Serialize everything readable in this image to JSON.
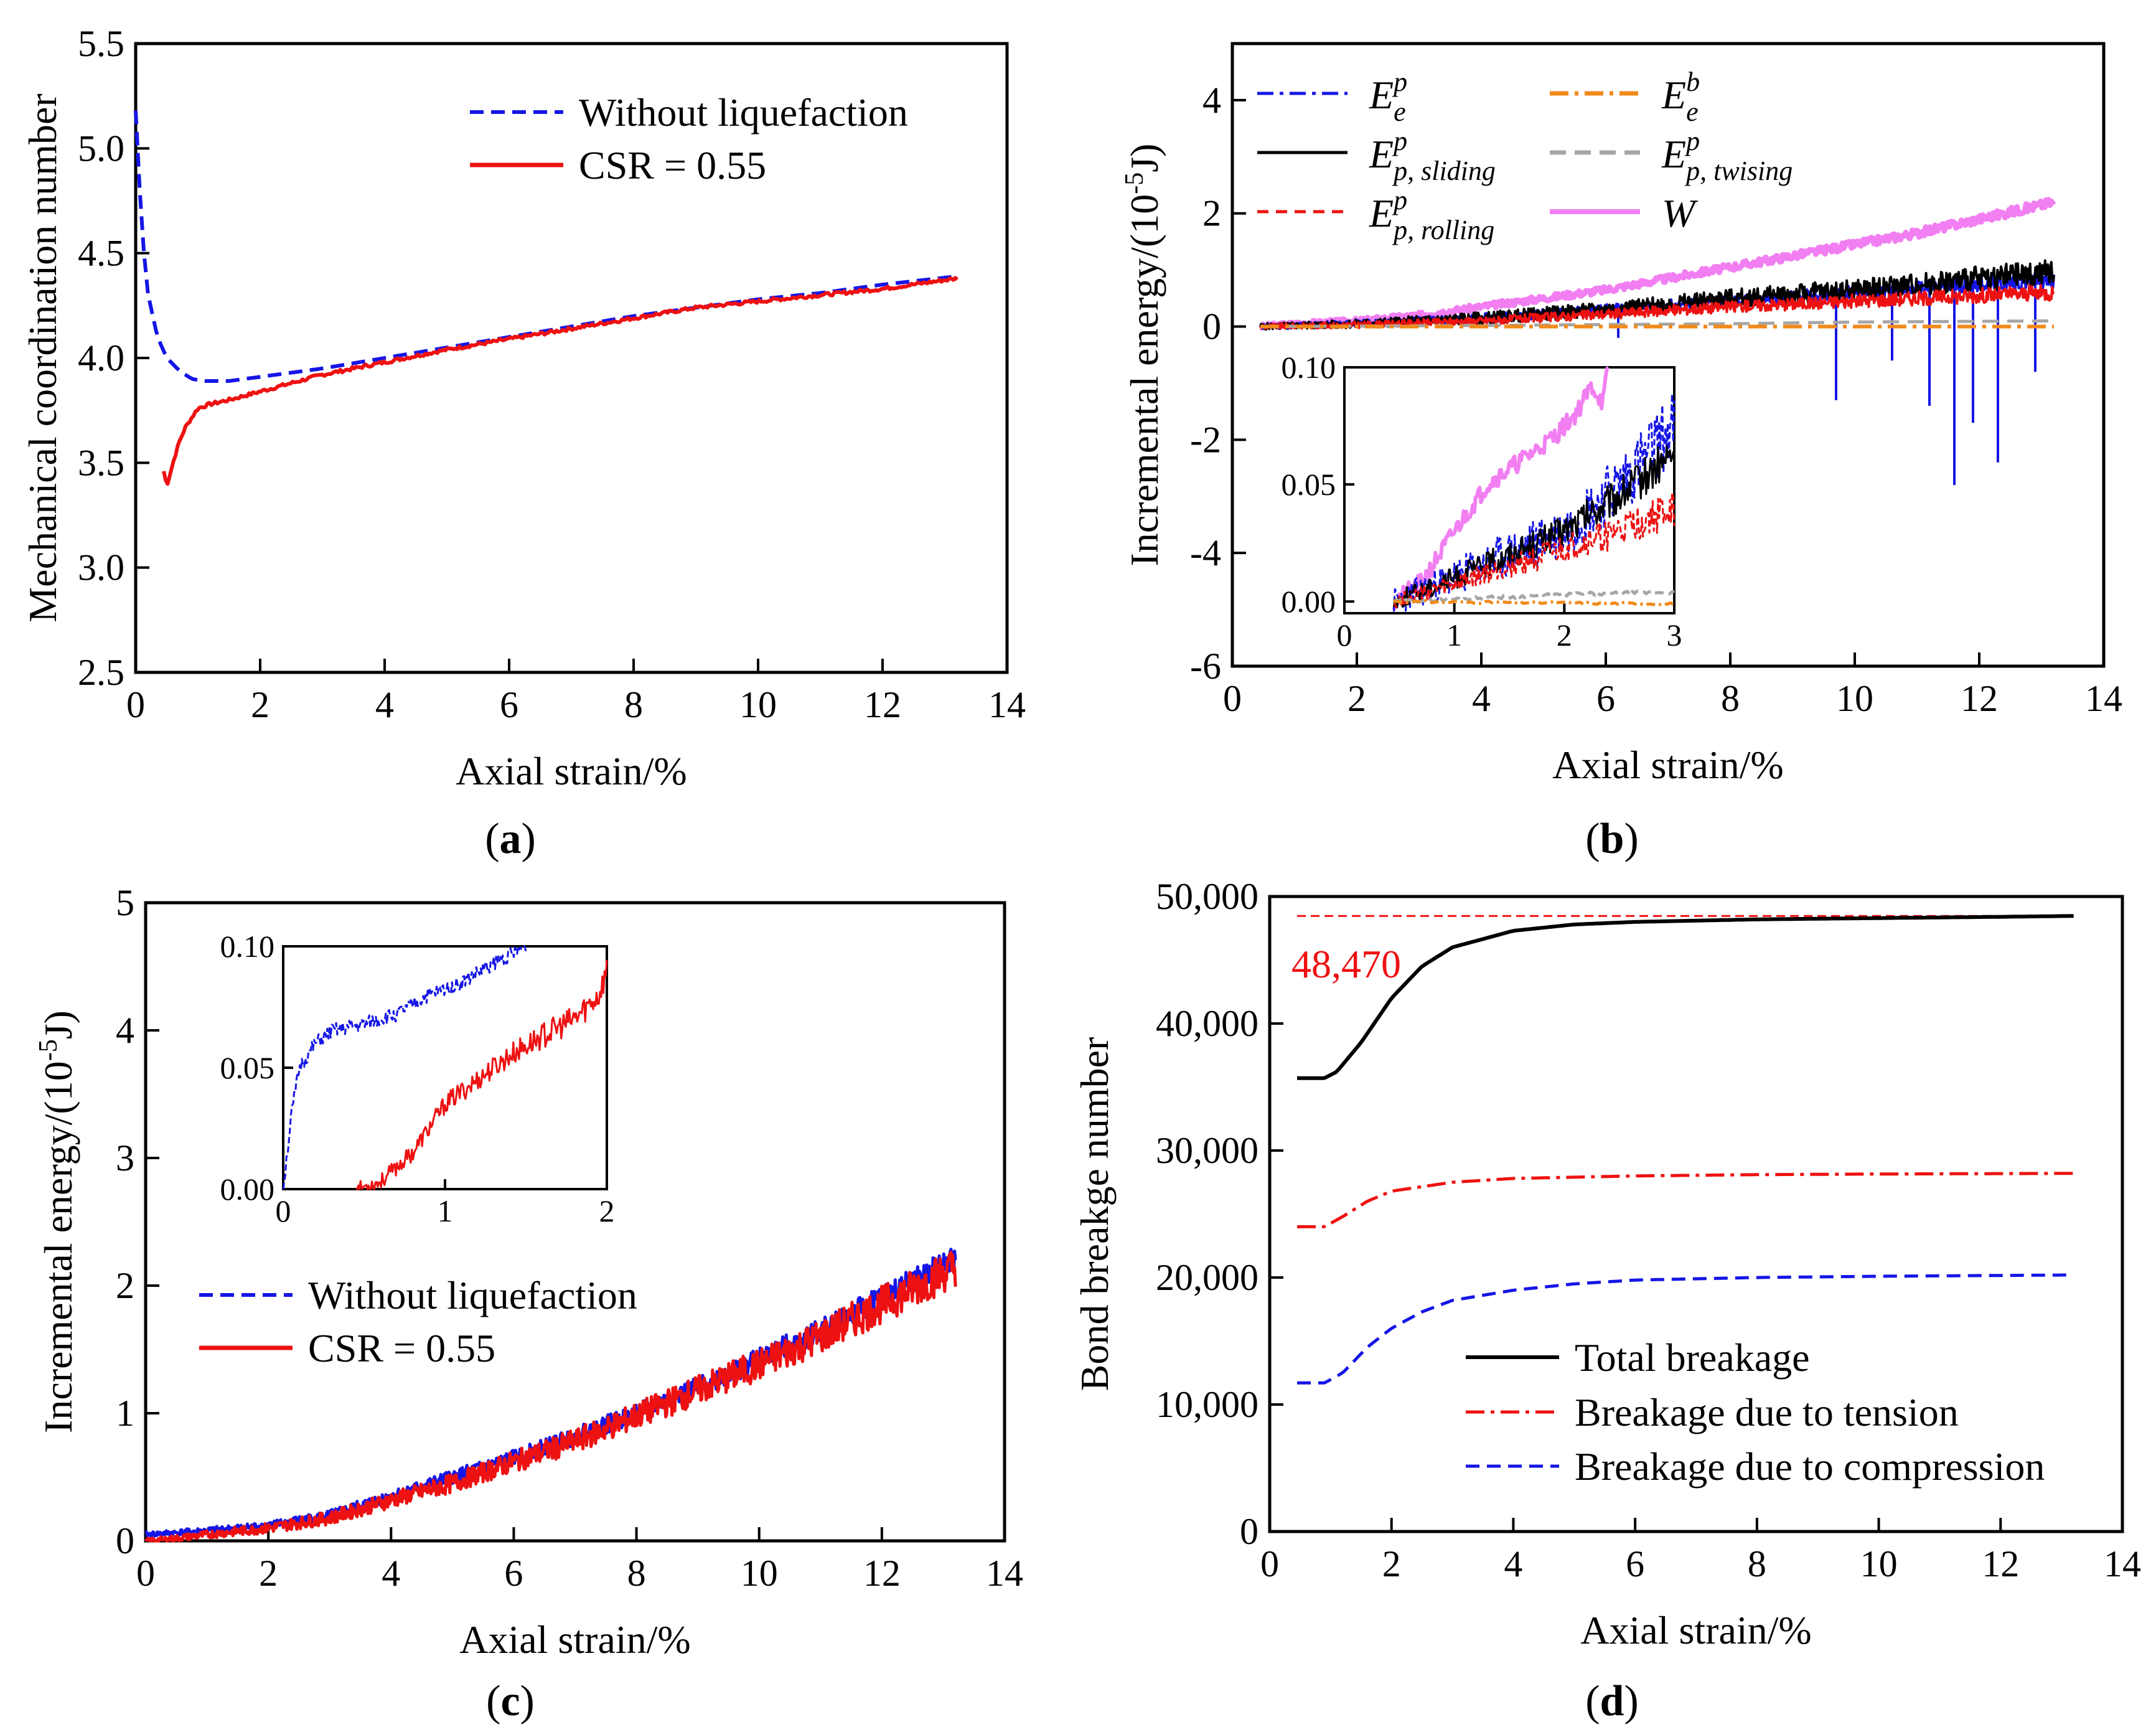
{
  "colors": {
    "blue": "#1515e6",
    "red": "#ee1111",
    "black": "#000000",
    "orange": "#f08a1c",
    "gray": "#a6a6a6",
    "violet": "#f27ff2"
  },
  "chart_data": [
    {
      "panel": "(a)",
      "panel_letter": "a",
      "type": "line",
      "xlabel": "Axial strain/%",
      "ylabel": "Mechanical coordination number",
      "xlim": [
        0,
        14
      ],
      "ylim": [
        2.5,
        5.5
      ],
      "xticks": [
        "0",
        "2",
        "4",
        "6",
        "8",
        "10",
        "12",
        "14"
      ],
      "yticks": [
        "2.5",
        "3.0",
        "3.5",
        "4.0",
        "4.5",
        "5.0",
        "5.5"
      ],
      "legend": [
        "Without liquefaction",
        "CSR = 0.55"
      ],
      "series": [
        {
          "name": "Without liquefaction",
          "x": [
            0,
            0.1,
            0.2,
            0.35,
            0.5,
            0.7,
            0.9,
            1.1,
            1.5,
            2,
            3,
            4,
            5,
            6,
            7,
            8,
            9,
            10,
            11,
            12,
            13.2
          ],
          "y": [
            5.18,
            4.6,
            4.3,
            4.1,
            4.0,
            3.94,
            3.9,
            3.89,
            3.89,
            3.91,
            3.95,
            4.0,
            4.05,
            4.1,
            4.15,
            4.2,
            4.24,
            4.28,
            4.31,
            4.35,
            4.39
          ]
        },
        {
          "name": "CSR = 0.55",
          "x": [
            0.45,
            0.5,
            0.6,
            0.7,
            0.8,
            1.0,
            1.2,
            1.5,
            2,
            3,
            4,
            5,
            6,
            7,
            8,
            9,
            10,
            11,
            12,
            13.2
          ],
          "y": [
            3.46,
            3.39,
            3.5,
            3.6,
            3.67,
            3.76,
            3.78,
            3.8,
            3.84,
            3.92,
            3.98,
            4.04,
            4.09,
            4.14,
            4.19,
            4.24,
            4.27,
            4.3,
            4.33,
            4.38
          ]
        }
      ]
    },
    {
      "panel": "(b)",
      "panel_letter": "b",
      "type": "line",
      "xlabel": "Axial strain/%",
      "ylabel_main": "Incremental energy/(10",
      "ylabel_sup": "-5",
      "ylabel_end": "J)",
      "xlim": [
        0,
        14
      ],
      "ylim": [
        -6,
        5
      ],
      "xticks": [
        "0",
        "2",
        "4",
        "6",
        "8",
        "10",
        "12",
        "14"
      ],
      "yticks": [
        "-6",
        "-4",
        "-2",
        "0",
        "2",
        "4"
      ],
      "legend": [
        {
          "base": "E",
          "sup": "p",
          "sub": "e"
        },
        {
          "base": "E",
          "sup": "b",
          "sub": "e"
        },
        {
          "base": "E",
          "sup": "p",
          "sub": "p, sliding"
        },
        {
          "base": "E",
          "sup": "p",
          "sub": "p, twising"
        },
        {
          "base": "E",
          "sup": "p",
          "sub": "p, rolling"
        },
        {
          "base": "W",
          "sup": "",
          "sub": ""
        }
      ],
      "series": [
        {
          "key": "Ee_p",
          "x": [
            0.45,
            2,
            4,
            6,
            8,
            10,
            12,
            13.2
          ],
          "y": [
            0,
            0.05,
            0.15,
            0.3,
            0.45,
            0.6,
            0.75,
            0.8
          ],
          "spikes": [
            [
              6.2,
              -0.2
            ],
            [
              9.7,
              -1.3
            ],
            [
              10.6,
              -0.6
            ],
            [
              11.2,
              -1.4
            ],
            [
              11.6,
              -2.8
            ],
            [
              11.9,
              -1.7
            ],
            [
              12.3,
              -2.4
            ],
            [
              12.9,
              -0.8
            ]
          ]
        },
        {
          "key": "Ee_b",
          "x": [
            0.45,
            13.2
          ],
          "y": [
            0,
            0
          ]
        },
        {
          "key": "Ep_sliding",
          "x": [
            0.45,
            2,
            4,
            6,
            8,
            10,
            12,
            13.2
          ],
          "y": [
            0,
            0.05,
            0.15,
            0.3,
            0.5,
            0.65,
            0.85,
            0.95
          ]
        },
        {
          "key": "Ep_twising",
          "x": [
            0.45,
            4,
            8,
            10,
            13.2
          ],
          "y": [
            0,
            0.02,
            0.05,
            0.08,
            0.1
          ]
        },
        {
          "key": "Ep_rolling",
          "x": [
            0.45,
            2,
            4,
            6,
            8,
            10,
            12,
            13.2
          ],
          "y": [
            0,
            0.03,
            0.1,
            0.22,
            0.35,
            0.45,
            0.55,
            0.6
          ]
        },
        {
          "key": "W",
          "x": [
            0.45,
            1,
            2,
            3,
            4,
            5,
            6,
            7,
            8,
            9,
            10,
            11,
            12,
            13.2
          ],
          "y": [
            0,
            0.05,
            0.1,
            0.2,
            0.35,
            0.5,
            0.65,
            0.85,
            1.05,
            1.25,
            1.45,
            1.65,
            1.9,
            2.2
          ]
        }
      ],
      "inset": {
        "xlim": [
          0,
          3
        ],
        "ylim": [
          -0.005,
          0.1
        ],
        "xticks": [
          "0",
          "1",
          "2",
          "3"
        ],
        "yticks": [
          "0.00",
          "0.05",
          "0.10"
        ],
        "series": [
          {
            "key": "W",
            "x": [
              0.45,
              0.7,
              1.0,
              1.3,
              1.6,
              1.9,
              2.1,
              2.25,
              2.35,
              2.4
            ],
            "y": [
              0,
              0.008,
              0.03,
              0.05,
              0.06,
              0.07,
              0.08,
              0.092,
              0.085,
              0.1
            ]
          },
          {
            "key": "Ee_p",
            "x": [
              0.45,
              1,
              1.5,
              2,
              2.5,
              3
            ],
            "y": [
              0,
              0.01,
              0.02,
              0.03,
              0.05,
              0.075
            ]
          },
          {
            "key": "Ep_sliding",
            "x": [
              0.45,
              1,
              1.5,
              2,
              2.5,
              3
            ],
            "y": [
              0,
              0.01,
              0.02,
              0.03,
              0.045,
              0.063
            ]
          },
          {
            "key": "Ep_rolling",
            "x": [
              0.45,
              1,
              1.5,
              2,
              2.5,
              3
            ],
            "y": [
              0,
              0.007,
              0.015,
              0.022,
              0.03,
              0.04
            ]
          },
          {
            "key": "Ep_twising",
            "x": [
              0.45,
              1,
              2,
              3
            ],
            "y": [
              0,
              0.001,
              0.003,
              0.004
            ]
          },
          {
            "key": "Ee_b",
            "x": [
              0.45,
              3
            ],
            "y": [
              0,
              -0.001
            ]
          }
        ]
      }
    },
    {
      "panel": "(c)",
      "panel_letter": "c",
      "type": "line",
      "xlabel": "Axial strain/%",
      "ylabel_main": "Incremental energy/(10",
      "ylabel_sup": "-5",
      "ylabel_end": "J)",
      "xlim": [
        0,
        14
      ],
      "ylim": [
        0,
        5
      ],
      "xticks": [
        "0",
        "2",
        "4",
        "6",
        "8",
        "10",
        "12",
        "14"
      ],
      "yticks": [
        "0",
        "1",
        "2",
        "3",
        "4",
        "5"
      ],
      "legend": [
        "Without liquefaction",
        "CSR = 0.55"
      ],
      "series": [
        {
          "name": "Without liquefaction",
          "x": [
            0,
            1,
            2,
            3,
            4,
            5,
            6,
            7,
            8,
            9,
            10,
            11,
            12,
            13.2
          ],
          "y": [
            0.05,
            0.08,
            0.12,
            0.2,
            0.35,
            0.5,
            0.65,
            0.82,
            1.0,
            1.2,
            1.42,
            1.65,
            1.9,
            2.2
          ]
        },
        {
          "name": "CSR = 0.55",
          "x": [
            0,
            0.5,
            1,
            2,
            3,
            4,
            5,
            6,
            7,
            8,
            9,
            10,
            11,
            12,
            13.2
          ],
          "y": [
            0,
            0.02,
            0.05,
            0.1,
            0.18,
            0.32,
            0.45,
            0.62,
            0.78,
            0.98,
            1.18,
            1.38,
            1.6,
            1.85,
            2.15
          ]
        }
      ],
      "inset": {
        "xlim": [
          0,
          2
        ],
        "ylim": [
          0,
          0.1
        ],
        "xticks": [
          "0",
          "1",
          "2"
        ],
        "yticks": [
          "0.00",
          "0.05",
          "0.10"
        ],
        "series": [
          {
            "name": "Without liquefaction",
            "x": [
              0,
              0.05,
              0.1,
              0.2,
              0.3,
              0.5,
              0.7,
              0.9,
              1.1,
              1.3,
              1.5
            ],
            "y": [
              0,
              0.03,
              0.05,
              0.06,
              0.065,
              0.068,
              0.072,
              0.08,
              0.085,
              0.093,
              0.1
            ]
          },
          {
            "name": "CSR = 0.55",
            "x": [
              0.45,
              0.6,
              0.8,
              1.0,
              1.2,
              1.4,
              1.6,
              1.8,
              1.95,
              2.0
            ],
            "y": [
              0,
              0.003,
              0.015,
              0.035,
              0.045,
              0.055,
              0.063,
              0.07,
              0.08,
              0.09
            ]
          }
        ]
      }
    },
    {
      "panel": "(d)",
      "panel_letter": "d",
      "type": "line",
      "xlabel": "Axial strain/%",
      "ylabel": "Bond breakge number",
      "xlim": [
        0,
        14
      ],
      "ylim": [
        0,
        50000
      ],
      "xticks": [
        "0",
        "2",
        "4",
        "6",
        "8",
        "10",
        "12",
        "14"
      ],
      "yticks": [
        "0",
        "10,000",
        "20,000",
        "30,000",
        "40,000",
        "50,000"
      ],
      "annotation": "48,470",
      "reference_line": 48470,
      "legend": [
        "Total breakage",
        "Breakage due to tension",
        "Breakage due to compression"
      ],
      "series": [
        {
          "name": "Total breakage",
          "x": [
            0.45,
            0.9,
            1.1,
            1.5,
            2,
            2.5,
            3,
            4,
            5,
            6,
            8,
            10,
            12,
            13.2
          ],
          "y": [
            35700,
            35700,
            36200,
            38500,
            42000,
            44500,
            46000,
            47300,
            47800,
            48000,
            48200,
            48300,
            48400,
            48470
          ]
        },
        {
          "name": "Breakage due to tension",
          "x": [
            0.45,
            0.9,
            1.2,
            1.6,
            2,
            3,
            4,
            6,
            8,
            10,
            13.2
          ],
          "y": [
            24000,
            24000,
            24800,
            26000,
            26800,
            27500,
            27800,
            28000,
            28100,
            28150,
            28200
          ]
        },
        {
          "name": "Breakage due to compression",
          "x": [
            0.45,
            0.9,
            1.2,
            1.6,
            2,
            2.5,
            3,
            4,
            5,
            6,
            8,
            10,
            13.2
          ],
          "y": [
            11700,
            11700,
            12500,
            14500,
            16000,
            17300,
            18200,
            19000,
            19500,
            19800,
            20000,
            20100,
            20200
          ]
        }
      ]
    }
  ]
}
